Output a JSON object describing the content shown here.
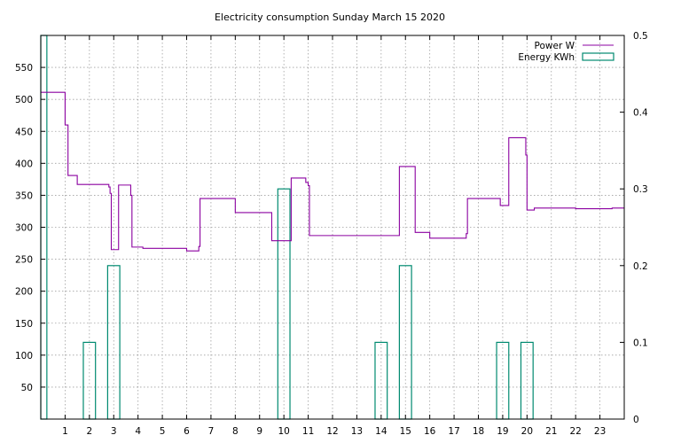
{
  "chart_data": {
    "type": "line",
    "title": "Electricity consumption Sunday March 15 2020",
    "xlabel": "",
    "ylabel": "",
    "xlim": [
      0,
      24
    ],
    "ylim": [
      0,
      600
    ],
    "y2lim": [
      0,
      0.5
    ],
    "grid": true,
    "legend_position": "top-right",
    "x_ticks": [
      1,
      2,
      3,
      4,
      5,
      6,
      7,
      8,
      9,
      10,
      11,
      12,
      13,
      14,
      15,
      16,
      17,
      18,
      19,
      20,
      21,
      22,
      23
    ],
    "y_ticks": [
      50,
      100,
      150,
      200,
      250,
      300,
      350,
      400,
      450,
      500,
      550
    ],
    "y2_ticks": [
      0,
      0.1,
      0.2,
      0.3,
      0.4,
      0.5
    ],
    "y2_tick_labels": [
      "0",
      "0.1",
      "0.2",
      "0.3",
      "0.4",
      "0.5"
    ],
    "series": [
      {
        "name": "Power W",
        "axis": "y1",
        "style": "steps",
        "color": "#8b00a0",
        "x": [
          0,
          0.95,
          0.97,
          1.0,
          1.12,
          1.5,
          1.6,
          1.8,
          1.8,
          2.0,
          2.8,
          2.8,
          2.85,
          2.85,
          2.9,
          2.9,
          3.0,
          3.2,
          3.2,
          3.7,
          3.7,
          3.75,
          4.0,
          4.2,
          4.5,
          5.0,
          5.5,
          6.0,
          6.0,
          6.5,
          6.5,
          6.55,
          6.55,
          7.0,
          7.5,
          7.5,
          8.0,
          8.5,
          9.0,
          9.5,
          9.5,
          9.8,
          10.0,
          10.3,
          10.3,
          10.9,
          10.9,
          11.0,
          11.05,
          11.05,
          12.0,
          12.5,
          13.0,
          13.5,
          14.0,
          14.5,
          14.7,
          14.75,
          14.75,
          15.4,
          15.4,
          16.0,
          16.0,
          17.0,
          17.5,
          17.5,
          17.55,
          17.55,
          18.0,
          18.5,
          18.9,
          18.9,
          19.0,
          19.25,
          19.25,
          19.5,
          19.9,
          19.95,
          20.0,
          20.0,
          20.3,
          20.5,
          21.0,
          21.5,
          22.0,
          22.0,
          22.5,
          23.0,
          23.5,
          23.7
        ],
        "y": [
          511,
          511,
          511,
          460,
          381,
          367,
          367,
          367,
          367,
          367,
          367,
          363,
          363,
          353,
          353,
          265,
          265,
          265,
          366,
          366,
          350,
          269,
          269,
          267,
          267,
          267,
          267,
          267,
          263,
          263,
          270,
          270,
          345,
          345,
          345,
          345,
          323,
          323,
          323,
          323,
          279,
          279,
          279,
          279,
          377,
          377,
          370,
          365,
          365,
          287,
          287,
          287,
          287,
          287,
          287,
          287,
          287,
          287,
          395,
          395,
          292,
          292,
          283,
          283,
          283,
          290,
          290,
          345,
          345,
          345,
          345,
          334,
          334,
          334,
          440,
          440,
          440,
          413,
          413,
          327,
          330,
          330,
          330,
          330,
          330,
          329,
          329,
          329,
          330,
          330
        ]
      },
      {
        "name": "Energy KWh",
        "axis": "y2",
        "style": "boxes",
        "color": "#008a70",
        "bars": [
          {
            "x": 0,
            "value": 0.5
          },
          {
            "x": 2,
            "value": 0.1
          },
          {
            "x": 3,
            "value": 0.2
          },
          {
            "x": 10,
            "value": 0.3
          },
          {
            "x": 14,
            "value": 0.1
          },
          {
            "x": 15,
            "value": 0.2
          },
          {
            "x": 19,
            "value": 0.1
          },
          {
            "x": 20,
            "value": 0.1
          }
        ]
      }
    ]
  }
}
